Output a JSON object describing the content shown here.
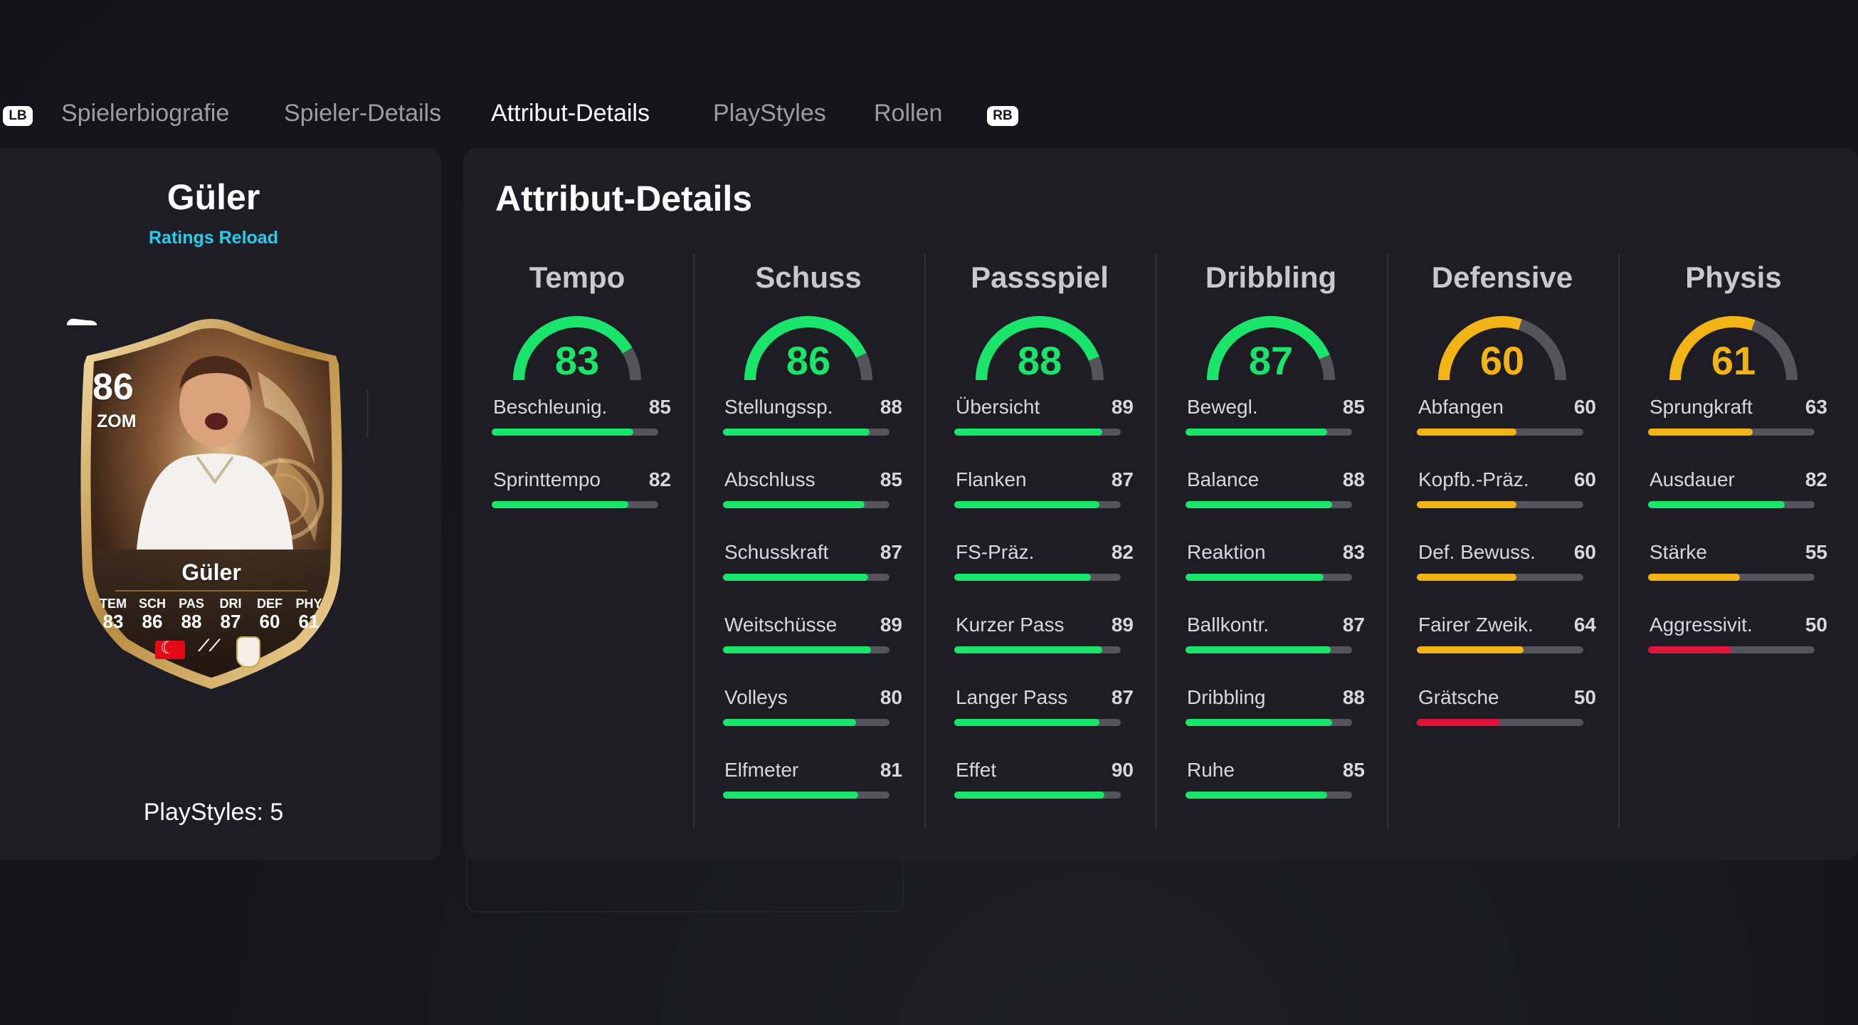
{
  "tabs": {
    "left_shoulder": "LB",
    "right_shoulder": "RB",
    "items": [
      {
        "label": "Spielerbiografie"
      },
      {
        "label": "Spieler-Details"
      },
      {
        "label": "Attribut-Details"
      },
      {
        "label": "PlayStyles"
      },
      {
        "label": "Rollen"
      }
    ],
    "active_index": 2
  },
  "player": {
    "name": "Güler",
    "subtitle": "Ratings Reload",
    "playstyles_text": "PlayStyles: 5",
    "card": {
      "rating": "86",
      "position": "ZOM",
      "name": "Güler",
      "stats": [
        {
          "label": "TEM",
          "value": "83"
        },
        {
          "label": "SCH",
          "value": "86"
        },
        {
          "label": "PAS",
          "value": "88"
        },
        {
          "label": "DRI",
          "value": "87"
        },
        {
          "label": "DEF",
          "value": "60"
        },
        {
          "label": "PHY",
          "value": "61"
        }
      ],
      "icons": [
        "flag-icon",
        "league-icon",
        "club-crest-icon",
        "boot-icon"
      ]
    }
  },
  "attributes": {
    "title": "Attribut-Details",
    "categories": [
      {
        "name": "Tempo",
        "value": 83,
        "items": [
          {
            "name": "Beschleunig.",
            "value": 85
          },
          {
            "name": "Sprinttempo",
            "value": 82
          }
        ]
      },
      {
        "name": "Schuss",
        "value": 86,
        "items": [
          {
            "name": "Stellungssp.",
            "value": 88
          },
          {
            "name": "Abschluss",
            "value": 85
          },
          {
            "name": "Schusskraft",
            "value": 87
          },
          {
            "name": "Weitschüsse",
            "value": 89
          },
          {
            "name": "Volleys",
            "value": 80
          },
          {
            "name": "Elfmeter",
            "value": 81
          }
        ]
      },
      {
        "name": "Passspiel",
        "value": 88,
        "items": [
          {
            "name": "Übersicht",
            "value": 89
          },
          {
            "name": "Flanken",
            "value": 87
          },
          {
            "name": "FS-Präz.",
            "value": 82
          },
          {
            "name": "Kurzer Pass",
            "value": 89
          },
          {
            "name": "Langer Pass",
            "value": 87
          },
          {
            "name": "Effet",
            "value": 90
          }
        ]
      },
      {
        "name": "Dribbling",
        "value": 87,
        "items": [
          {
            "name": "Bewegl.",
            "value": 85
          },
          {
            "name": "Balance",
            "value": 88
          },
          {
            "name": "Reaktion",
            "value": 83
          },
          {
            "name": "Ballkontr.",
            "value": 87
          },
          {
            "name": "Dribbling",
            "value": 88
          },
          {
            "name": "Ruhe",
            "value": 85
          }
        ]
      },
      {
        "name": "Defensive",
        "value": 60,
        "items": [
          {
            "name": "Abfangen",
            "value": 60
          },
          {
            "name": "Kopfb.-Präz.",
            "value": 60
          },
          {
            "name": "Def. Bewuss.",
            "value": 60
          },
          {
            "name": "Fairer Zweik.",
            "value": 64
          },
          {
            "name": "Grätsche",
            "value": 50
          }
        ]
      },
      {
        "name": "Physis",
        "value": 61,
        "items": [
          {
            "name": "Sprungkraft",
            "value": 63
          },
          {
            "name": "Ausdauer",
            "value": 82
          },
          {
            "name": "Stärke",
            "value": 55
          },
          {
            "name": "Aggressivit.",
            "value": 50
          }
        ]
      }
    ]
  },
  "colors": {
    "high": "#19e56b",
    "mid": "#f2b414",
    "low": "#e0153a",
    "track": "#55545c",
    "accent": "#1fd1ec"
  }
}
